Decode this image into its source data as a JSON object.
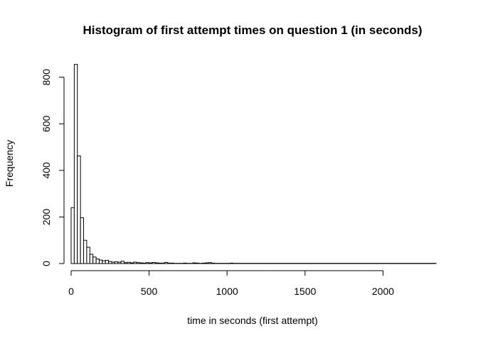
{
  "chart_data": {
    "type": "bar",
    "title": "Histogram of first attempt times on question 1 (in seconds)",
    "xlabel": "time in seconds (first attempt)",
    "ylabel": "Frequency",
    "bin_width": 20,
    "xlim": [
      0,
      2340
    ],
    "ylim": [
      0,
      860
    ],
    "x_ticks": [
      0,
      500,
      1000,
      1500,
      2000
    ],
    "y_ticks": [
      0,
      200,
      400,
      600,
      800
    ],
    "grid": false,
    "bins_start": [
      0,
      20,
      40,
      60,
      80,
      100,
      120,
      140,
      160,
      180,
      200,
      220,
      240,
      260,
      280,
      300,
      320,
      340,
      360,
      380,
      400,
      420,
      440,
      460,
      480,
      500,
      520,
      540,
      560,
      580,
      600,
      620,
      640,
      660,
      680,
      700,
      720,
      740,
      760,
      780,
      800,
      820,
      840,
      860,
      880,
      900,
      920,
      940,
      960,
      980,
      1000,
      1020,
      1040,
      1060,
      1080,
      1100,
      1120,
      1140,
      1160,
      1180,
      1200,
      1220,
      1240,
      1260,
      1280,
      1300,
      1320,
      1340,
      1360,
      1380,
      1400,
      1420,
      1440,
      1460,
      1480,
      1500,
      1520,
      1540,
      1560,
      1580,
      1600,
      1620,
      1640,
      1660,
      1680,
      1700,
      1720,
      1740,
      1760,
      1780,
      1800,
      1820,
      1840,
      1860,
      1880,
      1900,
      1920,
      1940,
      1960,
      1980,
      2000,
      2020,
      2040,
      2060,
      2080,
      2100,
      2120,
      2140,
      2160,
      2180,
      2200,
      2220,
      2240,
      2260,
      2280,
      2300,
      2320
    ],
    "values": [
      240,
      855,
      462,
      197,
      100,
      70,
      40,
      28,
      20,
      15,
      12,
      14,
      9,
      6,
      8,
      6,
      10,
      4,
      5,
      3,
      6,
      4,
      3,
      2,
      4,
      3,
      5,
      3,
      2,
      2,
      5,
      2,
      2,
      1,
      1,
      1,
      2,
      1,
      1,
      3,
      2,
      1,
      2,
      3,
      4,
      2,
      1,
      1,
      1,
      1,
      1,
      2,
      1,
      1,
      1,
      1,
      1,
      1,
      1,
      1,
      1,
      1,
      1,
      1,
      1,
      1,
      1,
      1,
      1,
      1,
      1,
      1,
      1,
      1,
      1,
      1,
      1,
      1,
      1,
      1,
      1,
      1,
      1,
      1,
      1,
      1,
      1,
      1,
      1,
      1,
      1,
      1,
      1,
      1,
      1,
      1,
      1,
      1,
      1,
      1,
      1,
      1,
      1,
      1,
      1,
      1,
      1,
      1,
      1,
      1,
      1,
      1,
      1,
      1,
      1,
      1,
      1
    ]
  }
}
